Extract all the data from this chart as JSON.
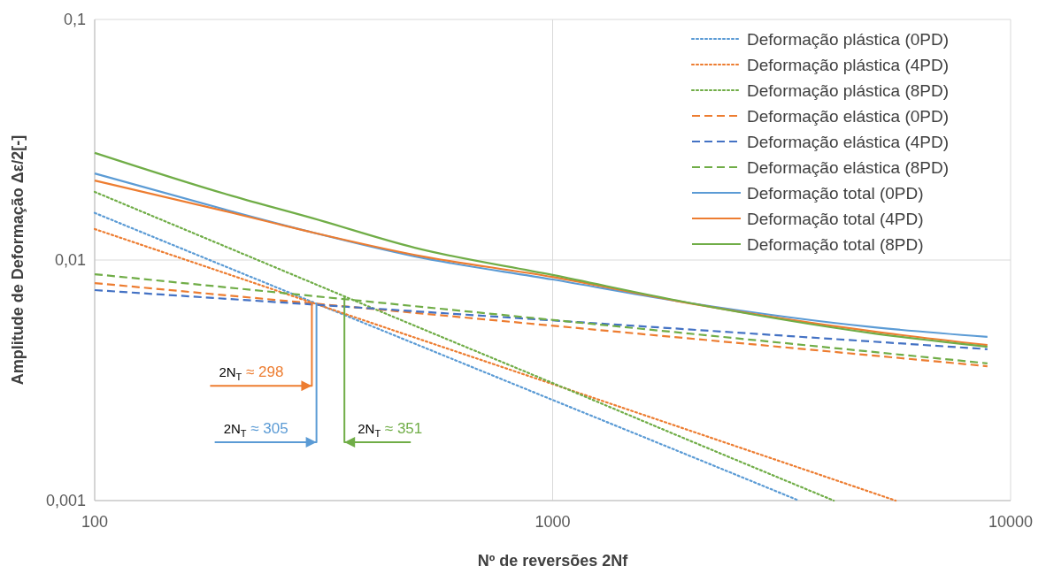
{
  "chart_data": {
    "type": "line",
    "xlabel": "Nº de reversões 2Nf",
    "ylabel": "Amplitude de Deformação Δε/2[-]",
    "log": "xy",
    "grid": true,
    "legend": "top right",
    "xlim": [
      100,
      10000
    ],
    "xticks": [
      100,
      1000,
      10000
    ],
    "ylim": [
      0.001,
      0.1
    ],
    "yticks": [
      {
        "value": 0.001,
        "label": "0,001"
      },
      {
        "value": 0.01,
        "label": "0,01"
      },
      {
        "value": 0.1,
        "label": "0,1"
      }
    ],
    "series": [
      {
        "name": "Deformação plástica (0PD)",
        "color": "#5b9bd5",
        "line_style": "dotted",
        "x": [
          100,
          200,
          500,
          1000,
          2000,
          3450
        ],
        "values": [
          0.0157,
          0.00914,
          0.00449,
          0.00262,
          0.00153,
          0.001
        ]
      },
      {
        "name": "Deformação plástica (4PD)",
        "color": "#ed7d31",
        "line_style": "dotted",
        "x": [
          100,
          200,
          500,
          1000,
          2000,
          5610
        ],
        "values": [
          0.01345,
          0.00861,
          0.00476,
          0.00305,
          0.00195,
          0.001
        ]
      },
      {
        "name": "Deformação plástica (8PD)",
        "color": "#70ad47",
        "line_style": "dotted",
        "x": [
          100,
          200,
          500,
          1000,
          2000,
          4110
        ],
        "values": [
          0.0192,
          0.01106,
          0.00533,
          0.00308,
          0.00177,
          0.001
        ]
      },
      {
        "name": "Deformação elástica (0PD)",
        "color": "#ed7d31",
        "line_style": "dashed",
        "x": [
          100,
          8900
        ],
        "values": [
          0.00802,
          0.00362
        ]
      },
      {
        "name": "Deformação elástica (4PD)",
        "color": "#4472c4",
        "line_style": "dashed",
        "x": [
          100,
          8900
        ],
        "values": [
          0.0075,
          0.00426
        ]
      },
      {
        "name": "Deformação elástica (8PD)",
        "color": "#70ad47",
        "line_style": "dashed",
        "x": [
          100,
          8900
        ],
        "values": [
          0.00873,
          0.00372
        ]
      },
      {
        "name": "Deformação total (0PD)",
        "color": "#5b9bd5",
        "line_style": "solid",
        "x": [
          100,
          200,
          300,
          500,
          1000,
          2000,
          5000,
          8900
        ],
        "values": [
          0.0229,
          0.0159,
          0.013,
          0.01035,
          0.0083,
          0.00662,
          0.00526,
          0.00479
        ]
      },
      {
        "name": "Deformação total (4PD)",
        "color": "#ed7d31",
        "line_style": "solid",
        "x": [
          100,
          200,
          300,
          500,
          1000,
          2000,
          5000,
          8900
        ],
        "values": [
          0.0214,
          0.0157,
          0.013,
          0.0105,
          0.0085,
          0.0066,
          0.00505,
          0.00443
        ]
      },
      {
        "name": "Deformação total (8PD)",
        "color": "#70ad47",
        "line_style": "solid",
        "x": [
          100,
          200,
          300,
          500,
          1000,
          2000,
          5000,
          8900
        ],
        "values": [
          0.0279,
          0.01845,
          0.0149,
          0.01125,
          0.00867,
          0.00662,
          0.00496,
          0.00436
        ]
      }
    ],
    "annotations": [
      {
        "text": "2N$_{T}$ ≈ 305",
        "x": 305,
        "y": 0.0066
      },
      {
        "text": "2N$_{T}$ ≈ 298",
        "x": 298,
        "y": 0.00665
      },
      {
        "text": "2N$_{T}$ ≈ 351",
        "x": 351,
        "y": 0.0071
      }
    ]
  }
}
